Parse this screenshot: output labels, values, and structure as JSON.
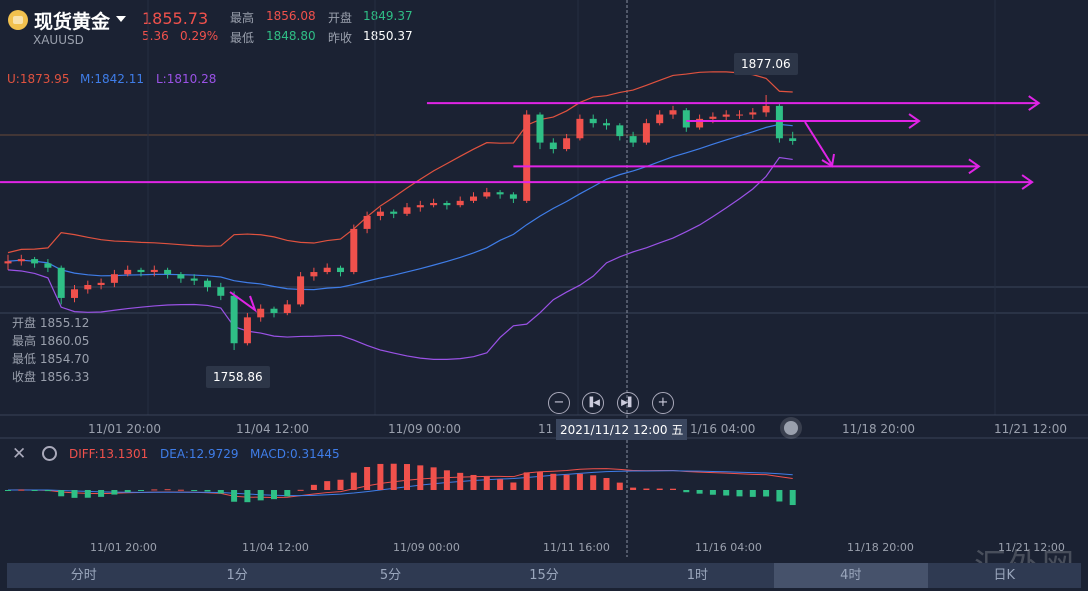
{
  "header": {
    "title": "现货黄金",
    "symbol": "XAUUSD",
    "price": "1855.73",
    "change": "5.36",
    "change_pct": "0.29%",
    "high_label": "最高",
    "high": "1856.08",
    "open_label": "开盘",
    "open": "1849.37",
    "low_label": "最低",
    "low": "1848.80",
    "prev_close_label": "昨收",
    "prev_close": "1850.37"
  },
  "indicators": {
    "upper": "U:1873.95",
    "mid": "M:1842.11",
    "lower": "L:1810.28"
  },
  "crosshair_info": {
    "open": "开盘 1855.12",
    "high": "最高 1860.05",
    "low": "最低 1854.70",
    "close": "收盘 1856.33",
    "time": "2021/11/12 12:00 五"
  },
  "markers": {
    "max": "1877.06",
    "min": "1758.86"
  },
  "colors": {
    "up": "#f0514c",
    "down": "#2fbf86",
    "upper": "#e0523f",
    "mid": "#3f7de8",
    "lower": "#9a52e6",
    "drawing": "#e024e6",
    "bg": "#1b2233"
  },
  "macd": {
    "diff": "DIFF:13.1301",
    "dea": "DEA:12.9729",
    "macd": "MACD:0.31445"
  },
  "xaxis": [
    "11/01 20:00",
    "11/04 12:00",
    "11/09 00:00",
    "11",
    "1/16 04:00",
    "11/18 20:00",
    "11/21 12:00"
  ],
  "xaxis2": [
    "11/01 20:00",
    "11/04 12:00",
    "11/09 00:00",
    "11/11 16:00",
    "11/16 04:00",
    "11/18 20:00",
    "11/21 12:00"
  ],
  "tabs": [
    {
      "label": "分时"
    },
    {
      "label": "1分"
    },
    {
      "label": "5分"
    },
    {
      "label": "15分"
    },
    {
      "label": "1时"
    },
    {
      "label": "4时",
      "selected": true
    },
    {
      "label": "日K"
    }
  ],
  "watermark": "汇外网",
  "chart_data": {
    "type": "candlestick",
    "price_range": [
      1758.86,
      1877.06
    ],
    "ohlc": [
      [
        1799,
        1803,
        1796,
        1800
      ],
      [
        1800,
        1803,
        1798,
        1801
      ],
      [
        1801,
        1802,
        1797,
        1799
      ],
      [
        1799,
        1801,
        1795,
        1797
      ],
      [
        1797,
        1798,
        1780,
        1783
      ],
      [
        1783,
        1789,
        1781,
        1787
      ],
      [
        1787,
        1791,
        1785,
        1789
      ],
      [
        1789,
        1792,
        1787,
        1790
      ],
      [
        1790,
        1796,
        1788,
        1794
      ],
      [
        1794,
        1798,
        1793,
        1796
      ],
      [
        1796,
        1797,
        1793,
        1795
      ],
      [
        1795,
        1798,
        1793,
        1796
      ],
      [
        1796,
        1797,
        1792,
        1794
      ],
      [
        1794,
        1795,
        1790,
        1792
      ],
      [
        1792,
        1794,
        1789,
        1791
      ],
      [
        1791,
        1792,
        1786,
        1788
      ],
      [
        1788,
        1790,
        1782,
        1784
      ],
      [
        1784,
        1786,
        1758.86,
        1762
      ],
      [
        1762,
        1776,
        1761,
        1774
      ],
      [
        1774,
        1780,
        1772,
        1778
      ],
      [
        1778,
        1779,
        1774,
        1776
      ],
      [
        1776,
        1782,
        1775,
        1780
      ],
      [
        1780,
        1795,
        1779,
        1793
      ],
      [
        1793,
        1797,
        1791,
        1795
      ],
      [
        1795,
        1799,
        1794,
        1797
      ],
      [
        1797,
        1798,
        1793,
        1795
      ],
      [
        1795,
        1817,
        1794,
        1815
      ],
      [
        1815,
        1823,
        1813,
        1821
      ],
      [
        1821,
        1825,
        1819,
        1823
      ],
      [
        1823,
        1824,
        1820,
        1822
      ],
      [
        1822,
        1827,
        1821,
        1825
      ],
      [
        1825,
        1828,
        1823,
        1826
      ],
      [
        1826,
        1829,
        1825,
        1827
      ],
      [
        1827,
        1828,
        1824,
        1826
      ],
      [
        1826,
        1830,
        1825,
        1828
      ],
      [
        1828,
        1832,
        1827,
        1830
      ],
      [
        1830,
        1834,
        1829,
        1832
      ],
      [
        1832,
        1833,
        1829,
        1831
      ],
      [
        1831,
        1832,
        1827,
        1829
      ],
      [
        1828,
        1870,
        1827,
        1868
      ],
      [
        1868,
        1869,
        1852,
        1855
      ],
      [
        1855,
        1857,
        1850,
        1852
      ],
      [
        1852,
        1859,
        1851,
        1857
      ],
      [
        1857,
        1868,
        1856,
        1866
      ],
      [
        1866,
        1868,
        1862,
        1864
      ],
      [
        1864,
        1866,
        1861,
        1863
      ],
      [
        1863,
        1864,
        1856,
        1858
      ],
      [
        1858,
        1860,
        1853,
        1855
      ],
      [
        1855,
        1866,
        1854,
        1864
      ],
      [
        1864,
        1870,
        1863,
        1868
      ],
      [
        1868,
        1872,
        1866,
        1870
      ],
      [
        1870,
        1871,
        1860,
        1862
      ],
      [
        1862,
        1868,
        1861,
        1866
      ],
      [
        1866,
        1869,
        1864,
        1867
      ],
      [
        1867,
        1870,
        1865,
        1868
      ],
      [
        1868,
        1870,
        1866,
        1868
      ],
      [
        1868,
        1871,
        1866,
        1869
      ],
      [
        1869,
        1877.06,
        1867,
        1872
      ],
      [
        1872,
        1873,
        1855,
        1857
      ],
      [
        1857,
        1860,
        1854,
        1855.73
      ]
    ],
    "drawings": [
      {
        "type": "ray",
        "price": 1873.3,
        "from": 31.5,
        "to": 77.5
      },
      {
        "type": "ray",
        "price": 1865,
        "from": 51,
        "to": 68.5
      },
      {
        "type": "ray",
        "price": 1844,
        "from": 38,
        "to": 73
      },
      {
        "type": "ray",
        "price": 1836.7,
        "from": -0.6,
        "to": 77
      }
    ]
  }
}
